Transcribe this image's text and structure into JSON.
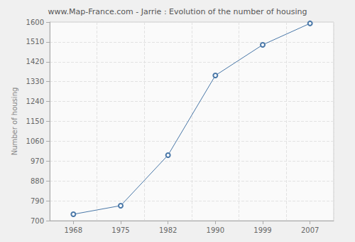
{
  "chart_data": {
    "type": "line",
    "title": "www.Map-France.com - Jarrie : Evolution of the number of housing",
    "ylabel": "Number of housing",
    "categories": [
      "1968",
      "1975",
      "1982",
      "1990",
      "1999",
      "2007"
    ],
    "values": [
      729,
      768,
      997,
      1358,
      1497,
      1594
    ],
    "color": "#4a78a8",
    "marker": "circle",
    "ylim": [
      700,
      1600
    ],
    "yticks": [
      700,
      790,
      880,
      970,
      1060,
      1150,
      1240,
      1330,
      1420,
      1510,
      1600
    ],
    "grid": true
  }
}
